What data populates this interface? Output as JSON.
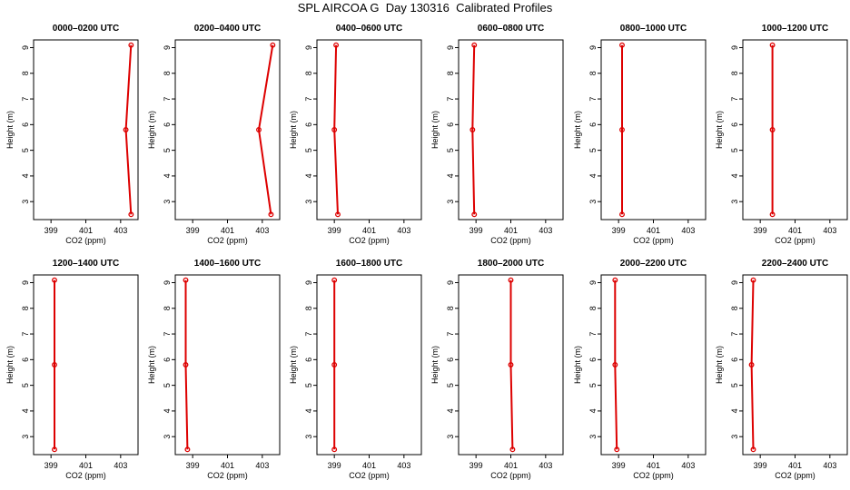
{
  "title": "SPL AIRCOA G  Day 130316  Calibrated Profiles",
  "colors": {
    "line": "#dd0000",
    "axis": "#000000"
  },
  "chart_data": {
    "type": "line",
    "xlabel": "CO2 (ppm)",
    "ylabel": "Height (m)",
    "xlim": [
      398,
      404
    ],
    "ylim": [
      2.3,
      9.3
    ],
    "xticks": [
      399,
      401,
      403
    ],
    "yticks": [
      3,
      4,
      5,
      6,
      7,
      8,
      9
    ],
    "heights": [
      9.1,
      5.8,
      2.5
    ],
    "grid": false,
    "panels": [
      {
        "title": "0000–0200 UTC",
        "values": [
          403.6,
          403.3,
          403.6
        ]
      },
      {
        "title": "0200–0400 UTC",
        "values": [
          403.6,
          402.8,
          403.5
        ]
      },
      {
        "title": "0400–0600 UTC",
        "values": [
          399.1,
          399.0,
          399.2
        ]
      },
      {
        "title": "0600–0800 UTC",
        "values": [
          398.9,
          398.8,
          398.9
        ]
      },
      {
        "title": "0800–1000 UTC",
        "values": [
          399.2,
          399.2,
          399.2
        ]
      },
      {
        "title": "1000–1200 UTC",
        "values": [
          399.7,
          399.7,
          399.7
        ]
      },
      {
        "title": "1200–1400 UTC",
        "values": [
          399.2,
          399.2,
          399.2
        ]
      },
      {
        "title": "1400–1600 UTC",
        "values": [
          398.6,
          398.6,
          398.7
        ]
      },
      {
        "title": "1600–1800 UTC",
        "values": [
          399.0,
          399.0,
          399.0
        ]
      },
      {
        "title": "1800–2000 UTC",
        "values": [
          401.0,
          401.0,
          401.1
        ]
      },
      {
        "title": "2000–2200 UTC",
        "values": [
          398.8,
          398.8,
          398.9
        ]
      },
      {
        "title": "2200–2400 UTC",
        "values": [
          398.6,
          398.5,
          398.6
        ]
      }
    ]
  }
}
